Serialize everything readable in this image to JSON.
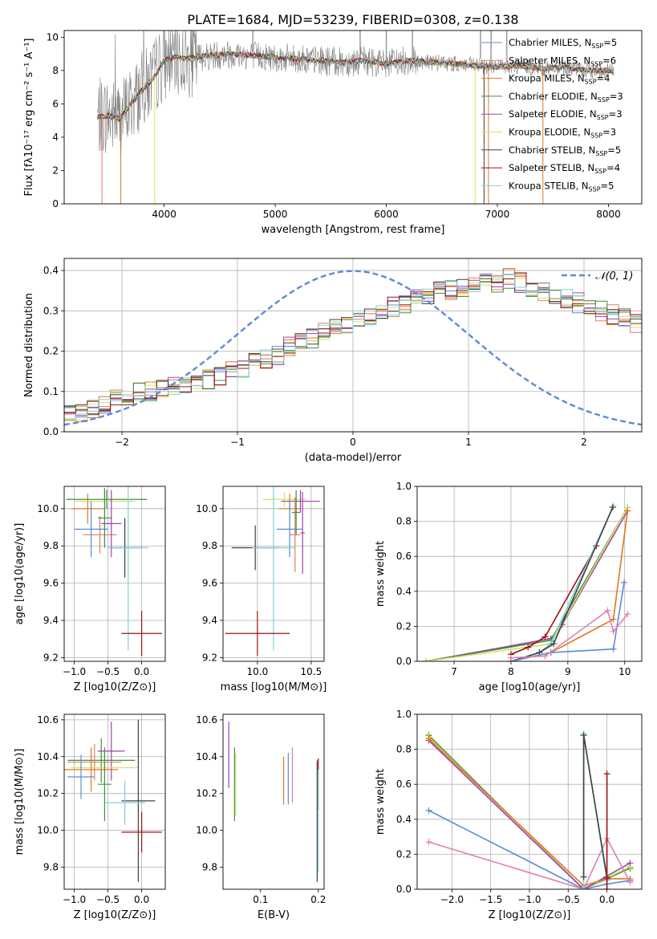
{
  "figure_title": "PLATE=1684, MJD=53239, FIBERID=0308, z=0.138",
  "colors": {
    "chabrier_miles": "#5b8bd6",
    "salpeter_miles": "#e08060",
    "kroupa_miles": "#e07820",
    "chabrier_elodie": "#3f8f3f",
    "salpeter_elodie": "#a040b0",
    "kroupa_elodie": "#d8e060",
    "chabrier_stelib": "#404040",
    "salpeter_stelib": "#a01010",
    "kroupa_stelib": "#80d0d8",
    "pink": "#e080b0",
    "data_grey": "#808080",
    "normal_curve": "#5b8bd6",
    "grid": "#b0b0b0"
  },
  "chart_data": [
    {
      "id": "spectrum",
      "type": "line",
      "xlabel": "wavelength [Angstrom, rest frame]",
      "ylabel": "Flux [fλ10⁻¹⁷ erg cm⁻² s⁻¹ A⁻¹]",
      "xlim": [
        3100,
        8300
      ],
      "ylim": [
        0,
        10.4
      ],
      "xticks": [
        4000,
        5000,
        6000,
        7000,
        8000
      ],
      "yticks": [
        0,
        2,
        4,
        6,
        8,
        10
      ],
      "grid": false,
      "legend_position": "top-right",
      "legend": [
        {
          "label": "Chabrier MILES, N",
          "sub": "SSP",
          "count": "=5",
          "color_key": "chabrier_miles"
        },
        {
          "label": "Salpeter MILES, N",
          "sub": "SSP",
          "count": "=6",
          "color_key": "salpeter_miles"
        },
        {
          "label": "Kroupa MILES, N",
          "sub": "SSP",
          "count": "=4",
          "color_key": "kroupa_miles"
        },
        {
          "label": "Chabrier ELODIE, N",
          "sub": "SSP",
          "count": "=3",
          "color_key": "chabrier_elodie"
        },
        {
          "label": "Salpeter ELODIE, N",
          "sub": "SSP",
          "count": "=3",
          "color_key": "salpeter_elodie"
        },
        {
          "label": "Kroupa ELODIE, N",
          "sub": "SSP",
          "count": "=3",
          "color_key": "kroupa_elodie"
        },
        {
          "label": "Chabrier STELIB, N",
          "sub": "SSP",
          "count": "=5",
          "color_key": "chabrier_stelib"
        },
        {
          "label": "Salpeter STELIB, N",
          "sub": "SSP",
          "count": "=4",
          "color_key": "salpeter_stelib"
        },
        {
          "label": "Kroupa STELIB, N",
          "sub": "SSP",
          "count": "=5",
          "color_key": "kroupa_stelib"
        }
      ],
      "model_curve": {
        "x": [
          3400,
          3500,
          3600,
          3700,
          3800,
          3900,
          4000,
          4100,
          4200,
          4400,
          4600,
          4800,
          5000,
          5200,
          5400,
          5600,
          5800,
          6000,
          6200,
          6400,
          6600,
          6800,
          7000,
          7200,
          7400,
          7600,
          7800,
          8000
        ],
        "y": [
          5.2,
          5.3,
          5.1,
          6.0,
          6.8,
          7.5,
          8.6,
          8.8,
          8.7,
          8.9,
          9.0,
          8.9,
          8.8,
          8.7,
          8.6,
          8.5,
          8.6,
          8.4,
          8.6,
          8.5,
          8.4,
          8.3,
          8.2,
          8.3,
          8.1,
          8.2,
          8.0,
          8.0
        ]
      }
    },
    {
      "id": "residuals",
      "type": "histogram",
      "xlabel": "(data-model)/error",
      "ylabel": "Normed distribution",
      "xlim": [
        -2.5,
        2.5
      ],
      "ylim": [
        0,
        0.43
      ],
      "xticks": [
        -2,
        -1,
        0,
        1,
        2
      ],
      "yticks": [
        0.0,
        0.1,
        0.2,
        0.3,
        0.4
      ],
      "grid": true,
      "legend_position": "top-right",
      "legend_label": "𝒩(0, 1)",
      "bin_width": 0.1,
      "bin_start": -2.5,
      "base_heights": [
        0.04,
        0.05,
        0.06,
        0.07,
        0.08,
        0.09,
        0.1,
        0.1,
        0.11,
        0.11,
        0.12,
        0.12,
        0.13,
        0.14,
        0.15,
        0.16,
        0.17,
        0.18,
        0.19,
        0.21,
        0.22,
        0.23,
        0.25,
        0.26,
        0.27,
        0.28,
        0.29,
        0.3,
        0.31,
        0.32,
        0.33,
        0.34,
        0.35,
        0.35,
        0.36,
        0.36,
        0.37,
        0.37,
        0.38,
        0.37,
        0.36,
        0.35,
        0.34,
        0.33,
        0.32,
        0.31,
        0.3,
        0.29,
        0.28,
        0.27,
        0.26,
        0.25,
        0.24,
        0.23,
        0.22,
        0.21,
        0.19,
        0.18,
        0.17,
        0.16,
        0.15,
        0.14,
        0.13,
        0.12,
        0.11,
        0.1,
        0.1,
        0.09,
        0.08,
        0.08,
        0.07,
        0.06,
        0.06,
        0.05,
        0.05,
        0.04,
        0.04,
        0.04,
        0.04,
        0.04
      ],
      "normal": {
        "mean": 0,
        "sigma": 1
      }
    },
    {
      "id": "age_vs_Z",
      "type": "errorbar",
      "xlabel": "Z [log10(Z/Z⊙)]",
      "ylabel": "age  [log10(age/yr)]",
      "xlim": [
        -1.15,
        0.35
      ],
      "ylim": [
        9.18,
        10.12
      ],
      "xticks": [
        -1.0,
        -0.5,
        0.0
      ],
      "yticks": [
        9.2,
        9.4,
        9.6,
        9.8,
        10.0
      ],
      "grid": true,
      "points": [
        {
          "x": -0.52,
          "xerr": 0.6,
          "y": 10.05,
          "yerr": 0.05,
          "c": "chabrier_elodie"
        },
        {
          "x": -0.55,
          "xerr": 0.45,
          "y": 10.04,
          "yerr": 0.07,
          "c": "kroupa_elodie"
        },
        {
          "x": -0.8,
          "xerr": 0.25,
          "y": 10.0,
          "yerr": 0.08,
          "c": "kroupa_miles"
        },
        {
          "x": -0.62,
          "xerr": 0.25,
          "y": 9.86,
          "yerr": 0.1,
          "c": "salpeter_miles"
        },
        {
          "x": -0.75,
          "xerr": 0.25,
          "y": 9.89,
          "yerr": 0.15,
          "c": "chabrier_miles"
        },
        {
          "x": -0.45,
          "xerr": 0.15,
          "y": 9.92,
          "yerr": 0.18,
          "c": "salpeter_elodie"
        },
        {
          "x": -0.25,
          "xerr": 0.25,
          "y": 9.79,
          "yerr": 0.16,
          "c": "chabrier_stelib"
        },
        {
          "x": -0.2,
          "xerr": 0.3,
          "y": 9.79,
          "yerr": 0.55,
          "c": "kroupa_stelib"
        },
        {
          "x": 0.0,
          "xerr": 0.3,
          "y": 9.33,
          "yerr": 0.12,
          "c": "salpeter_stelib"
        },
        {
          "x": -0.55,
          "xerr": 0.1,
          "y": 9.95,
          "yerr": 0.16,
          "c": "chabrier_elodie"
        }
      ]
    },
    {
      "id": "age_vs_mass",
      "type": "errorbar",
      "xlabel": "mass [log10(M/M⊙)]",
      "ylabel": "",
      "xlim": [
        9.68,
        10.62
      ],
      "ylim": [
        9.18,
        10.12
      ],
      "xticks": [
        10.0,
        10.5
      ],
      "yticks": [
        9.2,
        9.4,
        9.6,
        9.8,
        10.0
      ],
      "grid": true,
      "points": [
        {
          "x": 10.25,
          "xerr": 0.2,
          "y": 10.05,
          "yerr": 0.04,
          "c": "kroupa_elodie"
        },
        {
          "x": 10.4,
          "xerr": 0.18,
          "y": 10.04,
          "yerr": 0.06,
          "c": "salpeter_elodie"
        },
        {
          "x": 10.3,
          "xerr": 0.1,
          "y": 10.0,
          "yerr": 0.08,
          "c": "kroupa_miles"
        },
        {
          "x": 10.35,
          "xerr": 0.05,
          "y": 9.86,
          "yerr": 0.2,
          "c": "salpeter_miles"
        },
        {
          "x": 10.3,
          "xerr": 0.12,
          "y": 9.89,
          "yerr": 0.15,
          "c": "chabrier_miles"
        },
        {
          "x": 10.42,
          "xerr": 0.02,
          "y": 9.87,
          "yerr": 0.22,
          "c": "salpeter_elodie"
        },
        {
          "x": 9.98,
          "xerr": 0.22,
          "y": 9.79,
          "yerr": 0.12,
          "c": "chabrier_stelib"
        },
        {
          "x": 10.15,
          "xerr": 0.2,
          "y": 9.79,
          "yerr": 0.55,
          "c": "kroupa_stelib"
        },
        {
          "x": 10.0,
          "xerr": 0.3,
          "y": 9.33,
          "yerr": 0.12,
          "c": "salpeter_stelib"
        },
        {
          "x": 10.36,
          "xerr": 0.04,
          "y": 9.98,
          "yerr": 0.12,
          "c": "chabrier_elodie"
        }
      ]
    },
    {
      "id": "massweight_vs_age",
      "type": "line",
      "xlabel": "age  [log10(age/yr)]",
      "ylabel": "mass weight",
      "xlim": [
        6.35,
        10.3
      ],
      "ylim": [
        0,
        1.0
      ],
      "xticks": [
        7,
        8,
        9,
        10
      ],
      "yticks": [
        0.0,
        0.2,
        0.4,
        0.6,
        0.8,
        1.0
      ],
      "grid": true,
      "series": [
        {
          "c": "salpeter_elodie",
          "x": [
            6.5,
            8.7,
            8.9,
            10.05
          ],
          "y": [
            0.0,
            0.13,
            0.21,
            0.86
          ]
        },
        {
          "c": "chabrier_elodie",
          "x": [
            6.5,
            8.7,
            10.05
          ],
          "y": [
            0.0,
            0.12,
            0.88
          ]
        },
        {
          "c": "kroupa_elodie",
          "x": [
            6.5,
            8.7,
            10.05
          ],
          "y": [
            0.0,
            0.1,
            0.88
          ]
        },
        {
          "c": "salpeter_stelib",
          "x": [
            8.0,
            8.3,
            8.6,
            9.5
          ],
          "y": [
            0.04,
            0.08,
            0.14,
            0.66
          ]
        },
        {
          "c": "kroupa_stelib",
          "x": [
            8.0,
            8.5,
            8.7,
            9.8
          ],
          "y": [
            0.0,
            0.05,
            0.1,
            0.89
          ]
        },
        {
          "c": "chabrier_stelib",
          "x": [
            8.0,
            8.5,
            8.75,
            9.79
          ],
          "y": [
            0.0,
            0.05,
            0.1,
            0.88
          ]
        },
        {
          "c": "kroupa_miles",
          "x": [
            8.0,
            8.7,
            9.8,
            10.05
          ],
          "y": [
            0.0,
            0.05,
            0.24,
            0.86
          ]
        },
        {
          "c": "chabrier_miles",
          "x": [
            8.0,
            8.7,
            9.8,
            9.99
          ],
          "y": [
            0.0,
            0.05,
            0.07,
            0.45
          ]
        },
        {
          "c": "pink",
          "x": [
            8.0,
            8.6,
            9.7,
            9.8,
            10.05
          ],
          "y": [
            0.02,
            0.03,
            0.29,
            0.17,
            0.27
          ]
        }
      ]
    },
    {
      "id": "mass_vs_Z",
      "type": "errorbar",
      "xlabel": "Z [log10(Z/Z⊙)]",
      "ylabel": "mass [log10(M/M⊙)]",
      "xlim": [
        -1.15,
        0.35
      ],
      "ylim": [
        9.68,
        10.63
      ],
      "xticks": [
        -1.0,
        -0.5,
        0.0
      ],
      "yticks": [
        9.8,
        10.0,
        10.2,
        10.4,
        10.6
      ],
      "grid": true,
      "points": [
        {
          "x": -0.45,
          "xerr": 0.2,
          "y": 10.43,
          "yerr": 0.16,
          "c": "salpeter_elodie"
        },
        {
          "x": -0.6,
          "xerr": 0.5,
          "y": 10.38,
          "yerr": 0.12,
          "c": "chabrier_elodie"
        },
        {
          "x": -0.7,
          "xerr": 0.4,
          "y": 10.37,
          "yerr": 0.1,
          "c": "salpeter_miles"
        },
        {
          "x": -0.55,
          "xerr": 0.5,
          "y": 10.34,
          "yerr": 0.1,
          "c": "kroupa_elodie"
        },
        {
          "x": -0.75,
          "xerr": 0.4,
          "y": 10.33,
          "yerr": 0.12,
          "c": "kroupa_miles"
        },
        {
          "x": -0.9,
          "xerr": 0.2,
          "y": 10.29,
          "yerr": 0.12,
          "c": "chabrier_miles"
        },
        {
          "x": -0.55,
          "xerr": 0.1,
          "y": 10.25,
          "yerr": 0.2,
          "c": "chabrier_elodie"
        },
        {
          "x": -0.05,
          "xerr": 0.25,
          "y": 10.16,
          "yerr": 0.44,
          "c": "chabrier_stelib"
        },
        {
          "x": -0.25,
          "xerr": 0.3,
          "y": 10.15,
          "yerr": 0.12,
          "c": "kroupa_stelib"
        },
        {
          "x": 0.0,
          "xerr": 0.3,
          "y": 9.99,
          "yerr": 0.11,
          "c": "salpeter_stelib"
        }
      ]
    },
    {
      "id": "mass_vs_ebv",
      "type": "errorbar",
      "xlabel": "E(B-V)",
      "ylabel": "",
      "xlim": [
        0.035,
        0.21
      ],
      "ylim": [
        9.68,
        10.63
      ],
      "xticks": [
        0.1,
        0.2
      ],
      "yticks": [
        9.8,
        10.0,
        10.2,
        10.4,
        10.6
      ],
      "grid": false,
      "points": [
        {
          "x": 0.045,
          "xerr": 0,
          "y": 10.41,
          "yerr": 0.18,
          "c": "salpeter_elodie"
        },
        {
          "x": 0.055,
          "xerr": 0,
          "y": 10.25,
          "yerr": 0.2,
          "c": "chabrier_elodie"
        },
        {
          "x": 0.057,
          "xerr": 0,
          "y": 10.25,
          "yerr": 0.17,
          "c": "kroupa_elodie"
        },
        {
          "x": 0.14,
          "xerr": 0,
          "y": 10.27,
          "yerr": 0.13,
          "c": "kroupa_miles"
        },
        {
          "x": 0.148,
          "xerr": 0,
          "y": 10.28,
          "yerr": 0.14,
          "c": "chabrier_miles"
        },
        {
          "x": 0.155,
          "xerr": 0,
          "y": 10.3,
          "yerr": 0.15,
          "c": "pink"
        },
        {
          "x": 0.198,
          "xerr": 0,
          "y": 10.05,
          "yerr": 0.33,
          "c": "chabrier_stelib"
        },
        {
          "x": 0.2,
          "xerr": 0,
          "y": 10.25,
          "yerr": 0.14,
          "c": "salpeter_stelib"
        },
        {
          "x": 0.2,
          "xerr": 0,
          "y": 10.05,
          "yerr": 0.28,
          "c": "kroupa_stelib"
        }
      ]
    },
    {
      "id": "massweight_vs_Z",
      "type": "line",
      "xlabel": "Z [log10(Z/Z⊙)]",
      "ylabel": "mass weight",
      "xlim": [
        -2.45,
        0.45
      ],
      "ylim": [
        0,
        1.0
      ],
      "xticks": [
        -2.0,
        -1.5,
        -1.0,
        -0.5,
        0.0
      ],
      "yticks": [
        0.0,
        0.2,
        0.4,
        0.6,
        0.8,
        1.0
      ],
      "grid": true,
      "series": [
        {
          "c": "chabrier_elodie",
          "x": [
            -2.3,
            -0.3,
            0.3
          ],
          "y": [
            0.88,
            0.0,
            0.12
          ]
        },
        {
          "c": "kroupa_elodie",
          "x": [
            -2.3,
            -0.3,
            0.3
          ],
          "y": [
            0.87,
            0.0,
            0.13
          ]
        },
        {
          "c": "salpeter_elodie",
          "x": [
            -2.3,
            -0.3,
            0.3
          ],
          "y": [
            0.85,
            0.0,
            0.15
          ]
        },
        {
          "c": "kroupa_miles",
          "x": [
            -2.3,
            -0.3,
            0.0,
            0.3
          ],
          "y": [
            0.86,
            0.02,
            0.06,
            0.06
          ]
        },
        {
          "c": "chabrier_miles",
          "x": [
            -2.3,
            -0.3,
            0.0,
            0.3
          ],
          "y": [
            0.45,
            0.0,
            0.03,
            0.05
          ]
        },
        {
          "c": "pink",
          "x": [
            -2.3,
            -0.3,
            0.0,
            0.3
          ],
          "y": [
            0.27,
            0.0,
            0.29,
            0.04
          ]
        },
        {
          "c": "kroupa_stelib",
          "x": [
            -0.3,
            -0.3,
            0.0
          ],
          "y": [
            0.0,
            0.89,
            0.05
          ]
        },
        {
          "c": "chabrier_stelib",
          "x": [
            -0.3,
            -0.3,
            0.0
          ],
          "y": [
            0.07,
            0.88,
            0.07
          ]
        },
        {
          "c": "salpeter_stelib",
          "x": [
            0.0,
            0.0,
            0.0
          ],
          "y": [
            0.0,
            0.66,
            0.06
          ]
        }
      ]
    }
  ]
}
